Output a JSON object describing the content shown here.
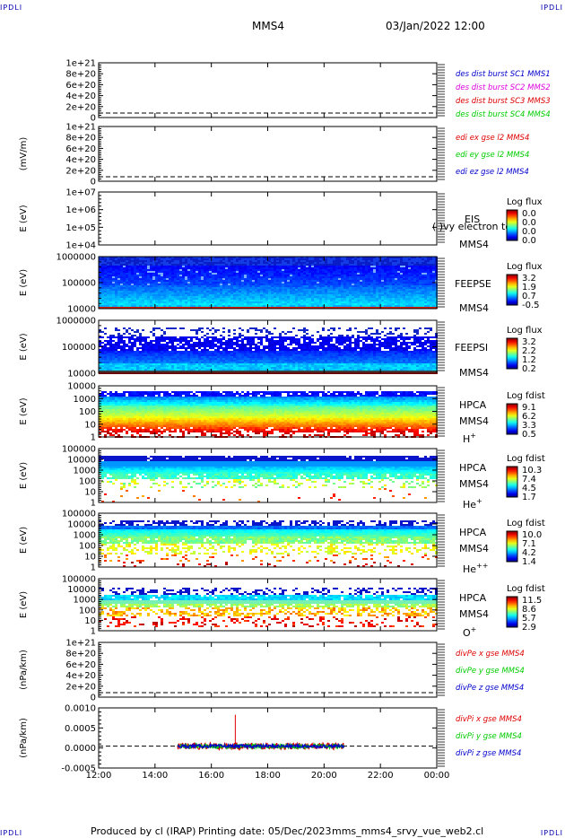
{
  "corner_label": "IPDLI",
  "header": {
    "satellite": "MMS4",
    "datetime": "03/Jan/2022 12:00"
  },
  "footer": {
    "produced_by": "Produced by cl (IRAP)",
    "printing_date": "Printing date: 05/Dec/2023",
    "script_name": "mms_mms4_srvy_vue_web2.cl"
  },
  "colors": {
    "red": "#dd0000",
    "green": "#00cc00",
    "blue": "#0000cc",
    "magenta": "#dd00dd",
    "grid_dash": "#000000"
  },
  "chart_data": [
    {
      "type": "line",
      "panel": "des_dist_burst",
      "ylabel": "",
      "yticks": [
        "1e+21",
        "8e+20",
        "6e+20",
        "4e+20",
        "2e+20",
        "0"
      ],
      "legend": [
        {
          "text": "des dist burst SC1 MMS1",
          "color": "#0000cc"
        },
        {
          "text": "des dist burst SC2 MMS2",
          "color": "#dd00dd"
        },
        {
          "text": "des dist burst SC3 MMS3",
          "color": "#dd0000"
        },
        {
          "text": "des dist burst SC4 MMS4",
          "color": "#00cc00"
        }
      ],
      "series": []
    },
    {
      "type": "line",
      "panel": "edi_e_gse",
      "ylabel": "(mV/m)",
      "yticks": [
        "1e+21",
        "8e+20",
        "6e+20",
        "4e+20",
        "2e+20",
        "0"
      ],
      "legend": [
        {
          "text": "edi ex gse l2 MMS4",
          "color": "#dd0000"
        },
        {
          "text": "edi ey gse l2 MMS4",
          "color": "#00cc00"
        },
        {
          "text": "edi ez gse l2 MMS4",
          "color": "#0000cc"
        }
      ],
      "series": []
    },
    {
      "type": "heatmap",
      "panel": "eis",
      "ylabel": "E (eV)",
      "yscale": "log",
      "ylim": [
        10000,
        10000000
      ],
      "yticks": [
        "1e+07",
        "1e+06",
        "1e+05",
        "1e+04"
      ],
      "labels": [
        "EIS",
        "MMS4"
      ],
      "overlay_text": "( )vy electron to",
      "colorbar": {
        "title": "Log flux",
        "ticks": [
          "0.0",
          "0.0",
          "0.0",
          "0.0"
        ]
      },
      "fill": "none"
    },
    {
      "type": "heatmap",
      "panel": "feeps_electron",
      "ylabel": "E (eV)",
      "yscale": "log",
      "ylim": [
        10000,
        1000000
      ],
      "yticks": [
        "1000000",
        "100000",
        "10000"
      ],
      "labels": [
        "FEEPSE",
        "MMS4"
      ],
      "colorbar": {
        "title": "Log flux",
        "ticks": [
          "3.2",
          "1.9",
          "0.7",
          "-0.5"
        ]
      },
      "fill": "feepse"
    },
    {
      "type": "heatmap",
      "panel": "feeps_ion",
      "ylabel": "E (eV)",
      "yscale": "log",
      "ylim": [
        10000,
        1000000
      ],
      "yticks": [
        "1000000",
        "100000",
        "10000"
      ],
      "labels": [
        "FEEPSI",
        "MMS4"
      ],
      "colorbar": {
        "title": "Log flux",
        "ticks": [
          "3.2",
          "2.2",
          "1.2",
          "0.2"
        ]
      },
      "fill": "feepsi"
    },
    {
      "type": "heatmap",
      "panel": "hpca_h",
      "ylabel": "E (eV)",
      "yscale": "log",
      "ylim": [
        1,
        10000
      ],
      "yticks": [
        "10000",
        "1000",
        "100",
        "10",
        "1"
      ],
      "labels": [
        "HPCA",
        "MMS4"
      ],
      "species": "H",
      "species_sup": "+",
      "colorbar": {
        "title": "Log fdist",
        "ticks": [
          "9.1",
          "6.2",
          "3.3",
          "0.5"
        ]
      },
      "fill": "hplus"
    },
    {
      "type": "heatmap",
      "panel": "hpca_he",
      "ylabel": "E (eV)",
      "yscale": "log",
      "ylim": [
        1,
        100000
      ],
      "yticks": [
        "100000",
        "10000",
        "1000",
        "100",
        "10",
        "1"
      ],
      "labels": [
        "HPCA",
        "MMS4"
      ],
      "species": "He",
      "species_sup": "+",
      "colorbar": {
        "title": "Log fdist",
        "ticks": [
          "10.3",
          "7.4",
          "4.5",
          "1.7"
        ]
      },
      "fill": "heplus"
    },
    {
      "type": "heatmap",
      "panel": "hpca_hepp",
      "ylabel": "E (eV)",
      "yscale": "log",
      "ylim": [
        1,
        100000
      ],
      "yticks": [
        "100000",
        "10000",
        "1000",
        "100",
        "10",
        "1"
      ],
      "labels": [
        "HPCA",
        "MMS4"
      ],
      "species": "He",
      "species_sup": "++",
      "colorbar": {
        "title": "Log fdist",
        "ticks": [
          "10.0",
          "7.1",
          "4.2",
          "1.4"
        ]
      },
      "fill": "heplusplus"
    },
    {
      "type": "heatmap",
      "panel": "hpca_o",
      "ylabel": "E (eV)",
      "yscale": "log",
      "ylim": [
        1,
        100000
      ],
      "yticks": [
        "100000",
        "10000",
        "1000",
        "100",
        "10",
        "1"
      ],
      "labels": [
        "HPCA",
        "MMS4"
      ],
      "species": "O",
      "species_sup": "+",
      "colorbar": {
        "title": "Log fdist",
        "ticks": [
          "11.5",
          "8.6",
          "5.7",
          "2.9"
        ]
      },
      "fill": "oplus"
    },
    {
      "type": "line",
      "panel": "divpe",
      "ylabel": "(nPa/km)",
      "yticks": [
        "1e+21",
        "8e+20",
        "6e+20",
        "4e+20",
        "2e+20",
        "0"
      ],
      "legend": [
        {
          "text": "divPe x gse MMS4",
          "color": "#dd0000"
        },
        {
          "text": "divPe y gse MMS4",
          "color": "#00cc00"
        },
        {
          "text": "divPe z gse MMS4",
          "color": "#0000cc"
        }
      ],
      "series": []
    },
    {
      "type": "line",
      "panel": "divpi",
      "ylabel": "(nPa/km)",
      "yticks": [
        "0.0010",
        "0.0005",
        "0.0000",
        "-0.0005"
      ],
      "ylim": [
        -0.0008,
        0.0014
      ],
      "legend": [
        {
          "text": "divPi x gse MMS4",
          "color": "#dd0000"
        },
        {
          "text": "divPi y gse MMS4",
          "color": "#00cc00"
        },
        {
          "text": "divPi z gse MMS4",
          "color": "#0000cc"
        }
      ],
      "data_time_range_hours": [
        14.8,
        20.7
      ],
      "series": [
        {
          "color": "#dd0000",
          "amplitude": 0.00012,
          "spike": {
            "t": 16.85,
            "y": 0.00115
          }
        },
        {
          "color": "#00cc00",
          "amplitude": 8e-05
        },
        {
          "color": "#0000cc",
          "amplitude": 6e-05
        }
      ]
    }
  ],
  "x_axis": {
    "type": "time",
    "xlim_hours": [
      12,
      24
    ],
    "ticks": [
      "12:00",
      "14:00",
      "16:00",
      "18:00",
      "20:00",
      "22:00",
      "00:00"
    ]
  }
}
